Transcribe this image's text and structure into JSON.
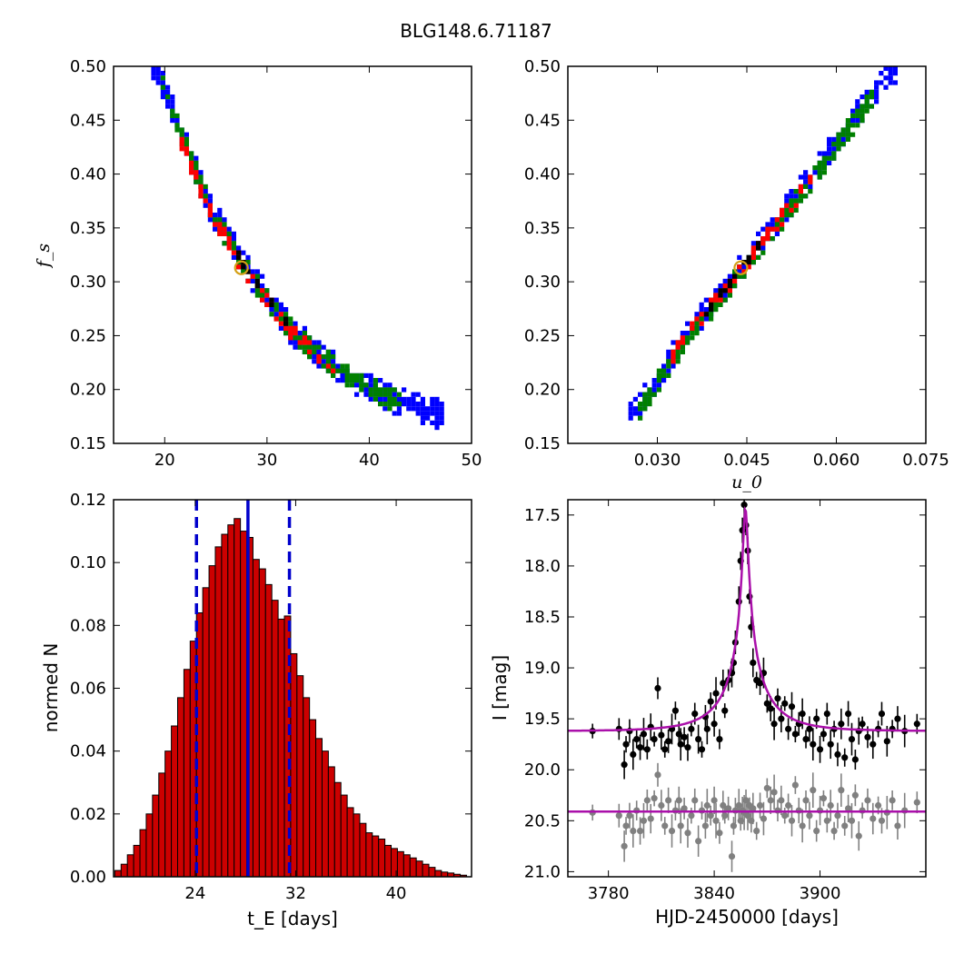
{
  "figure": {
    "title": "BLG148.6.71187"
  },
  "colors": {
    "sigma3": "#0000ff",
    "sigma2": "#008000",
    "sigma1": "#ff0000",
    "best": "#000000",
    "best_marker": "#d4a017",
    "hist_fill": "#cc0000",
    "vline": "#0000cc",
    "model": "#aa10aa",
    "data_primary": "#000000",
    "data_secondary": "#808080"
  },
  "chart_data": [
    {
      "id": "fs_vs_tE",
      "type": "heatmap",
      "xlabel": "",
      "ylabel": "f_s",
      "xlim": [
        15,
        50
      ],
      "ylim": [
        0.15,
        0.5
      ],
      "xticks": [
        "20",
        "30",
        "40",
        "50"
      ],
      "yticks": [
        "0.15",
        "0.20",
        "0.25",
        "0.30",
        "0.35",
        "0.40",
        "0.45",
        "0.50"
      ],
      "ridge": [
        [
          19.0,
          0.495
        ],
        [
          21.5,
          0.43
        ],
        [
          24.0,
          0.37
        ],
        [
          27.5,
          0.313
        ],
        [
          32.0,
          0.255
        ],
        [
          37.0,
          0.215
        ],
        [
          42.0,
          0.19
        ],
        [
          46.5,
          0.177
        ]
      ],
      "contour_halfwidths": {
        "sigma3": 0.011,
        "sigma2": 0.008,
        "sigma1": 0.0045,
        "best": 0.0015
      },
      "x_extent": {
        "sigma3": [
          18.5,
          47.0
        ],
        "sigma2": [
          19.5,
          43.0
        ],
        "sigma1": [
          21.5,
          36.5
        ],
        "best": [
          25.0,
          31.5
        ]
      },
      "best_fit": {
        "x": 27.5,
        "y": 0.313
      },
      "grid": false
    },
    {
      "id": "fs_vs_u0",
      "type": "heatmap",
      "xlabel": "u_0",
      "ylabel": "",
      "xlim": [
        0.015,
        0.075
      ],
      "ylim": [
        0.15,
        0.5
      ],
      "xticks": [
        "0.030",
        "0.045",
        "0.060",
        "0.075"
      ],
      "yticks": [
        "0.15",
        "0.20",
        "0.25",
        "0.30",
        "0.35",
        "0.40",
        "0.45",
        "0.50"
      ],
      "ridge": [
        [
          0.026,
          0.178
        ],
        [
          0.034,
          0.245
        ],
        [
          0.044,
          0.313
        ],
        [
          0.054,
          0.385
        ],
        [
          0.062,
          0.445
        ],
        [
          0.069,
          0.495
        ]
      ],
      "contour_halfwidths": {
        "sigma3": 0.01,
        "sigma2": 0.0075,
        "sigma1": 0.0045,
        "best": 0.0015
      },
      "x_extent": {
        "sigma3": [
          0.0255,
          0.0705
        ],
        "sigma2": [
          0.0265,
          0.066
        ],
        "sigma1": [
          0.0315,
          0.056
        ],
        "best": [
          0.038,
          0.047
        ]
      },
      "best_fit": {
        "x": 0.044,
        "y": 0.313
      },
      "grid": false
    },
    {
      "id": "tE_histogram",
      "type": "bar",
      "xlabel": "t_E [days]",
      "ylabel": "normed N",
      "xlim": [
        17.5,
        46.0
      ],
      "ylim": [
        0.0,
        0.12
      ],
      "xticks": [
        "24",
        "32",
        "40"
      ],
      "yticks": [
        "0.00",
        "0.02",
        "0.04",
        "0.06",
        "0.08",
        "0.10",
        "0.12"
      ],
      "bin_start": 17.6,
      "bin_width": 0.5,
      "values": [
        0.002,
        0.004,
        0.007,
        0.01,
        0.015,
        0.02,
        0.026,
        0.033,
        0.04,
        0.048,
        0.057,
        0.066,
        0.075,
        0.084,
        0.092,
        0.099,
        0.105,
        0.109,
        0.112,
        0.114,
        0.11,
        0.108,
        0.101,
        0.098,
        0.093,
        0.088,
        0.082,
        0.083,
        0.071,
        0.064,
        0.057,
        0.05,
        0.044,
        0.04,
        0.035,
        0.03,
        0.026,
        0.022,
        0.02,
        0.017,
        0.014,
        0.013,
        0.012,
        0.01,
        0.009,
        0.008,
        0.007,
        0.006,
        0.005,
        0.004,
        0.003,
        0.002,
        0.0015,
        0.0012,
        0.0008,
        0.0005,
        0.0003
      ],
      "vlines": [
        {
          "x": 28.2,
          "style": "solid"
        },
        {
          "x": 24.1,
          "style": "dashed"
        },
        {
          "x": 31.5,
          "style": "dashed"
        }
      ],
      "grid": false
    },
    {
      "id": "light_curve",
      "type": "scatter",
      "xlabel": "HJD-2450000 [days]",
      "ylabel": "I [mag]",
      "xlim": [
        3757,
        3960
      ],
      "ylim": [
        21.05,
        17.35
      ],
      "xticks": [
        "3780",
        "3840",
        "3900"
      ],
      "yticks": [
        "17.5",
        "18.0",
        "18.5",
        "19.0",
        "19.5",
        "20.0",
        "20.5",
        "21.0"
      ],
      "model": {
        "baseline": 19.62,
        "peak_t": 3857.7,
        "peak_mag": 17.45,
        "tE": 28.2,
        "u0": 0.044,
        "blend_fs": 0.313
      },
      "residual_baseline": 20.41,
      "series": [
        {
          "points": [
            [
              3771,
              19.62
            ],
            [
              3786,
              19.6
            ],
            [
              3789,
              19.95
            ],
            [
              3790,
              19.75
            ],
            [
              3792,
              19.62
            ],
            [
              3794,
              19.85
            ],
            [
              3796,
              19.7
            ],
            [
              3798,
              19.78
            ],
            [
              3800,
              19.65
            ],
            [
              3802,
              19.8
            ],
            [
              3804,
              19.58
            ],
            [
              3806,
              19.7
            ],
            [
              3808,
              19.2
            ],
            [
              3810,
              19.66
            ],
            [
              3812,
              19.8
            ],
            [
              3814,
              19.72
            ],
            [
              3816,
              19.6
            ],
            [
              3818,
              19.42
            ],
            [
              3820,
              19.65
            ],
            [
              3821,
              19.75
            ],
            [
              3823,
              19.68
            ],
            [
              3825,
              19.78
            ],
            [
              3827,
              19.6
            ],
            [
              3829,
              19.45
            ],
            [
              3831,
              19.7
            ],
            [
              3833,
              19.8
            ],
            [
              3835,
              19.48
            ],
            [
              3836,
              19.6
            ],
            [
              3838,
              19.33
            ],
            [
              3840,
              19.55
            ],
            [
              3841,
              19.25
            ],
            [
              3843,
              19.7
            ],
            [
              3845,
              19.15
            ],
            [
              3846,
              19.42
            ],
            [
              3848,
              19.12
            ],
            [
              3850,
              19.05
            ],
            [
              3851,
              18.95
            ],
            [
              3852,
              18.75
            ],
            [
              3854,
              18.35
            ],
            [
              3855,
              17.95
            ],
            [
              3856,
              17.65
            ],
            [
              3857,
              17.4
            ],
            [
              3858,
              17.6
            ],
            [
              3859,
              17.85
            ],
            [
              3860,
              18.3
            ],
            [
              3861,
              18.6
            ],
            [
              3862,
              18.95
            ],
            [
              3864,
              19.12
            ],
            [
              3866,
              19.15
            ],
            [
              3868,
              19.05
            ],
            [
              3870,
              19.35
            ],
            [
              3872,
              19.4
            ],
            [
              3874,
              19.55
            ],
            [
              3876,
              19.3
            ],
            [
              3878,
              19.5
            ],
            [
              3880,
              19.35
            ],
            [
              3882,
              19.6
            ],
            [
              3884,
              19.38
            ],
            [
              3886,
              19.65
            ],
            [
              3888,
              19.55
            ],
            [
              3890,
              19.45
            ],
            [
              3892,
              19.7
            ],
            [
              3894,
              19.6
            ],
            [
              3896,
              19.75
            ],
            [
              3898,
              19.5
            ],
            [
              3900,
              19.8
            ],
            [
              3902,
              19.65
            ],
            [
              3904,
              19.45
            ],
            [
              3906,
              19.75
            ],
            [
              3908,
              19.6
            ],
            [
              3910,
              19.85
            ],
            [
              3912,
              19.55
            ],
            [
              3914,
              19.88
            ],
            [
              3916,
              19.45
            ],
            [
              3918,
              19.7
            ],
            [
              3920,
              19.9
            ],
            [
              3922,
              19.62
            ],
            [
              3924,
              19.55
            ],
            [
              3927,
              19.68
            ],
            [
              3930,
              19.75
            ],
            [
              3933,
              19.6
            ],
            [
              3935,
              19.45
            ],
            [
              3938,
              19.72
            ],
            [
              3941,
              19.6
            ],
            [
              3944,
              19.5
            ],
            [
              3948,
              19.62
            ],
            [
              3955,
              19.55
            ]
          ],
          "errors": 0.12
        },
        {
          "points": [
            [
              3771,
              20.42
            ],
            [
              3786,
              20.45
            ],
            [
              3789,
              20.75
            ],
            [
              3790,
              20.55
            ],
            [
              3792,
              20.45
            ],
            [
              3794,
              20.6
            ],
            [
              3796,
              20.4
            ],
            [
              3798,
              20.6
            ],
            [
              3800,
              20.5
            ],
            [
              3802,
              20.3
            ],
            [
              3804,
              20.48
            ],
            [
              3806,
              20.28
            ],
            [
              3808,
              20.05
            ],
            [
              3810,
              20.35
            ],
            [
              3812,
              20.55
            ],
            [
              3814,
              20.3
            ],
            [
              3816,
              20.6
            ],
            [
              3818,
              20.4
            ],
            [
              3820,
              20.3
            ],
            [
              3821,
              20.55
            ],
            [
              3823,
              20.38
            ],
            [
              3825,
              20.62
            ],
            [
              3827,
              20.45
            ],
            [
              3829,
              20.3
            ],
            [
              3831,
              20.7
            ],
            [
              3833,
              20.4
            ],
            [
              3835,
              20.55
            ],
            [
              3836,
              20.35
            ],
            [
              3838,
              20.45
            ],
            [
              3840,
              20.3
            ],
            [
              3841,
              20.5
            ],
            [
              3843,
              20.62
            ],
            [
              3845,
              20.35
            ],
            [
              3846,
              20.45
            ],
            [
              3848,
              20.38
            ],
            [
              3850,
              20.85
            ],
            [
              3851,
              20.55
            ],
            [
              3852,
              20.4
            ],
            [
              3854,
              20.35
            ],
            [
              3855,
              20.5
            ],
            [
              3856,
              20.4
            ],
            [
              3857,
              20.42
            ],
            [
              3858,
              20.3
            ],
            [
              3859,
              20.45
            ],
            [
              3860,
              20.35
            ],
            [
              3861,
              20.5
            ],
            [
              3862,
              20.38
            ],
            [
              3864,
              20.6
            ],
            [
              3866,
              20.35
            ],
            [
              3868,
              20.48
            ],
            [
              3870,
              20.18
            ],
            [
              3872,
              20.3
            ],
            [
              3874,
              20.22
            ],
            [
              3876,
              20.4
            ],
            [
              3878,
              20.3
            ],
            [
              3880,
              20.45
            ],
            [
              3882,
              20.35
            ],
            [
              3884,
              20.5
            ],
            [
              3886,
              20.15
            ],
            [
              3888,
              20.4
            ],
            [
              3890,
              20.55
            ],
            [
              3892,
              20.3
            ],
            [
              3894,
              20.45
            ],
            [
              3896,
              20.2
            ],
            [
              3898,
              20.6
            ],
            [
              3900,
              20.4
            ],
            [
              3902,
              20.28
            ],
            [
              3904,
              20.5
            ],
            [
              3906,
              20.35
            ],
            [
              3908,
              20.6
            ],
            [
              3910,
              20.45
            ],
            [
              3912,
              20.2
            ],
            [
              3914,
              20.55
            ],
            [
              3916,
              20.38
            ],
            [
              3918,
              20.5
            ],
            [
              3920,
              20.25
            ],
            [
              3922,
              20.65
            ],
            [
              3924,
              20.4
            ],
            [
              3927,
              20.3
            ],
            [
              3930,
              20.48
            ],
            [
              3933,
              20.35
            ],
            [
              3935,
              20.5
            ],
            [
              3938,
              20.42
            ],
            [
              3941,
              20.3
            ],
            [
              3944,
              20.55
            ],
            [
              3948,
              20.4
            ],
            [
              3955,
              20.32
            ]
          ],
          "errors": 0.13
        }
      ],
      "grid": false
    }
  ]
}
